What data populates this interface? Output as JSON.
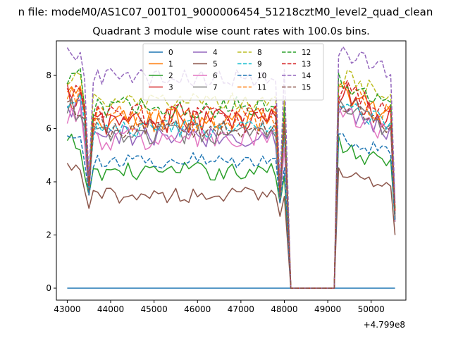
{
  "chart_data": {
    "type": "line",
    "suptitle": "n file: modeM0/AS1C07_001T01_9000006454_51218cztM0_level2_quad_clean",
    "title": "Quadrant 3 module wise count rates with 100.0s bins.",
    "xlabel": "",
    "ylabel": "",
    "x_offset_label": "+4.799e8",
    "xlim": [
      42750,
      50800
    ],
    "ylim": [
      -0.45,
      9.3
    ],
    "x_ticks": [
      43000,
      44000,
      45000,
      46000,
      47000,
      48000,
      49000,
      50000
    ],
    "y_ticks": [
      0,
      2,
      4,
      6,
      8
    ],
    "grid": false,
    "legend_position": "top-center",
    "legend_columns": 4,
    "x_segments": {
      "first": {
        "start": 43000,
        "end": 48050,
        "step": 100
      },
      "gap": {
        "start": 48150,
        "end": 49150,
        "step": 100
      },
      "second": {
        "start": 49250,
        "end": 50550,
        "step": 100
      }
    },
    "series": [
      {
        "name": "0",
        "color": "#1f77b4",
        "dash": "solid",
        "base": 0.0,
        "amp": 0.0,
        "low": 0.0
      },
      {
        "name": "1",
        "color": "#ff7f0e",
        "dash": "solid",
        "base": 6.3,
        "amp": 0.5,
        "low": 3.9
      },
      {
        "name": "2",
        "color": "#2ca02c",
        "dash": "solid",
        "base": 4.4,
        "amp": 0.35,
        "low": 3.5
      },
      {
        "name": "3",
        "color": "#d62728",
        "dash": "solid",
        "base": 6.3,
        "amp": 0.55,
        "low": 3.6
      },
      {
        "name": "4",
        "color": "#9467bd",
        "dash": "solid",
        "base": 5.7,
        "amp": 0.4,
        "low": 3.7
      },
      {
        "name": "5",
        "color": "#8c564b",
        "dash": "solid",
        "base": 3.5,
        "amp": 0.3,
        "low": 3.0
      },
      {
        "name": "6",
        "color": "#e377c2",
        "dash": "solid",
        "base": 5.6,
        "amp": 0.45,
        "low": 3.5
      },
      {
        "name": "7",
        "color": "#7f7f7f",
        "dash": "solid",
        "base": 5.8,
        "amp": 0.4,
        "low": 3.6
      },
      {
        "name": "8",
        "color": "#bcbd22",
        "dash": "dashed",
        "base": 7.0,
        "amp": 0.35,
        "low": 4.0
      },
      {
        "name": "9",
        "color": "#17becf",
        "dash": "dashed",
        "base": 6.0,
        "amp": 0.35,
        "low": 3.8
      },
      {
        "name": "10",
        "color": "#1f77b4",
        "dash": "dashed",
        "base": 4.8,
        "amp": 0.3,
        "low": 3.5
      },
      {
        "name": "11",
        "color": "#ff7f0e",
        "dash": "dashed",
        "base": 6.4,
        "amp": 0.5,
        "low": 3.9
      },
      {
        "name": "12",
        "color": "#2ca02c",
        "dash": "dashed",
        "base": 6.8,
        "amp": 0.4,
        "low": 4.0
      },
      {
        "name": "13",
        "color": "#d62728",
        "dash": "dashed",
        "base": 6.5,
        "amp": 0.45,
        "low": 3.9
      },
      {
        "name": "14",
        "color": "#9467bd",
        "dash": "dashed",
        "base": 7.9,
        "amp": 0.35,
        "low": 4.2
      },
      {
        "name": "15",
        "color": "#8c564b",
        "dash": "dashed",
        "base": 6.0,
        "amp": 0.4,
        "low": 3.7
      }
    ]
  }
}
